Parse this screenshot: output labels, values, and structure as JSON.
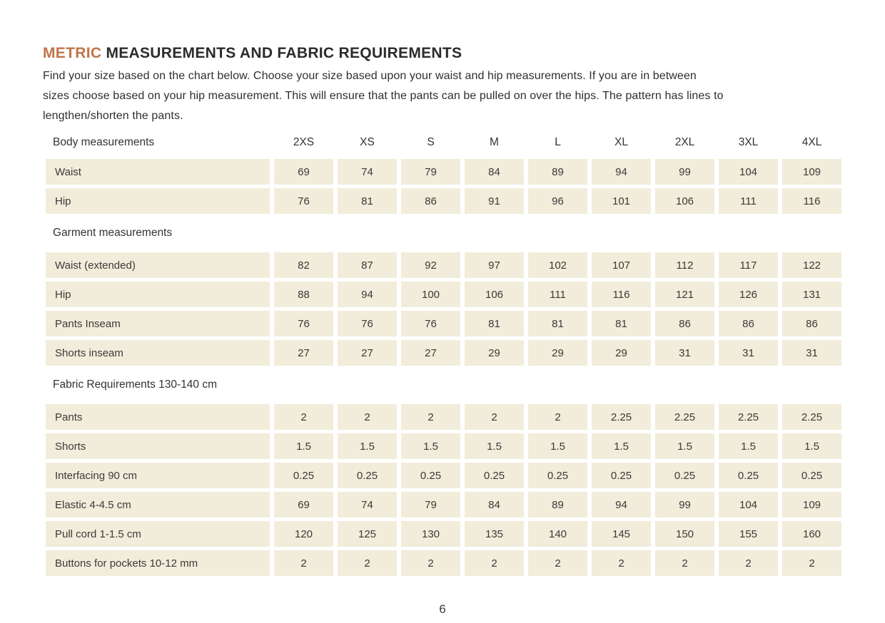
{
  "header": {
    "title_accent": "METRIC",
    "title_rest": "MEASUREMENTS AND FABRIC REQUIREMENTS",
    "intro_lines": [
      "Find your size based on the chart below. Choose your size based upon your waist and hip measurements. If you are in between",
      "sizes choose based on your hip measurement. This will ensure that the pants can be pulled on over the hips. The pattern has lines to",
      "lengthen/shorten the pants."
    ]
  },
  "table": {
    "size_columns": [
      "2XS",
      "XS",
      "S",
      "M",
      "L",
      "XL",
      "2XL",
      "3XL",
      "4XL"
    ],
    "sections": [
      {
        "header": "Body measurements",
        "rows": [
          {
            "label": "Waist",
            "values": [
              "69",
              "74",
              "79",
              "84",
              "89",
              "94",
              "99",
              "104",
              "109"
            ]
          },
          {
            "label": "Hip",
            "values": [
              "76",
              "81",
              "86",
              "91",
              "96",
              "101",
              "106",
              "111",
              "116"
            ]
          }
        ]
      },
      {
        "header": "Garment measurements",
        "rows": [
          {
            "label": "Waist (extended)",
            "values": [
              "82",
              "87",
              "92",
              "97",
              "102",
              "107",
              "112",
              "117",
              "122"
            ]
          },
          {
            "label": "Hip",
            "values": [
              "88",
              "94",
              "100",
              "106",
              "111",
              "116",
              "121",
              "126",
              "131"
            ]
          },
          {
            "label": "Pants Inseam",
            "values": [
              "76",
              "76",
              "76",
              "81",
              "81",
              "81",
              "86",
              "86",
              "86"
            ]
          },
          {
            "label": "Shorts inseam",
            "values": [
              "27",
              "27",
              "27",
              "29",
              "29",
              "29",
              "31",
              "31",
              "31"
            ]
          }
        ]
      },
      {
        "header": "Fabric Requirements 130-140 cm",
        "rows": [
          {
            "label": "Pants",
            "values": [
              "2",
              "2",
              "2",
              "2",
              "2",
              "2.25",
              "2.25",
              "2.25",
              "2.25"
            ]
          },
          {
            "label": "Shorts",
            "values": [
              "1.5",
              "1.5",
              "1.5",
              "1.5",
              "1.5",
              "1.5",
              "1.5",
              "1.5",
              "1.5"
            ]
          },
          {
            "label": "Interfacing 90 cm",
            "values": [
              "0.25",
              "0.25",
              "0.25",
              "0.25",
              "0.25",
              "0.25",
              "0.25",
              "0.25",
              "0.25"
            ]
          },
          {
            "label": "Elastic 4-4.5 cm",
            "values": [
              "69",
              "74",
              "79",
              "84",
              "89",
              "94",
              "99",
              "104",
              "109"
            ]
          },
          {
            "label": "Pull cord 1-1.5 cm",
            "values": [
              "120",
              "125",
              "130",
              "135",
              "140",
              "145",
              "150",
              "155",
              "160"
            ]
          },
          {
            "label": "Buttons for pockets 10-12 mm",
            "values": [
              "2",
              "2",
              "2",
              "2",
              "2",
              "2",
              "2",
              "2",
              "2"
            ]
          }
        ]
      }
    ]
  },
  "footer": {
    "page_number": "6"
  },
  "colors": {
    "accent_orange": "#c1744a",
    "cell_beige": "#f2ecda",
    "text_dark": "#383838"
  }
}
